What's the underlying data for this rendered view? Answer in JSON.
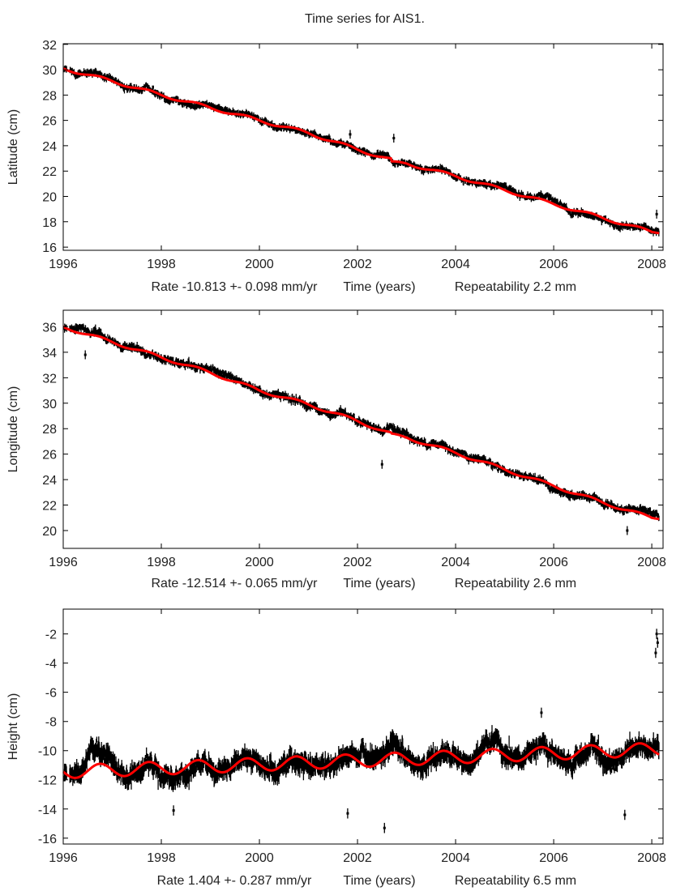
{
  "title": "Time series for AIS1.",
  "colors": {
    "observations": "#000000",
    "fit": "#ff0000",
    "axis": "#000000"
  },
  "chart_data": [
    {
      "type": "scatter",
      "ylabel": "Latitude (cm)",
      "xlabel_parts": [
        "Rate -10.813 +- 0.098 mm/yr",
        "Time (years)",
        "Repeatability 2.2 mm"
      ],
      "xlim": [
        1996,
        2008.23
      ],
      "ylim": [
        15.75,
        32.05
      ],
      "xticks": [
        1996,
        1998,
        2000,
        2002,
        2004,
        2006,
        2008
      ],
      "yticks": [
        16,
        18,
        20,
        22,
        24,
        26,
        28,
        30,
        32
      ],
      "fit_knots_year": [
        1996,
        1997,
        1998,
        1999,
        2000,
        2001,
        2002,
        2002.68,
        2002.7,
        2003,
        2004,
        2005,
        2006,
        2007,
        2008,
        2008.15
      ],
      "fit_knots_value": [
        30.1,
        29.1,
        28.0,
        27.0,
        26.0,
        25.0,
        23.7,
        22.9,
        22.65,
        22.6,
        21.6,
        20.5,
        19.4,
        18.3,
        17.2,
        17.2
      ],
      "seasonal_amplitude": 0.12,
      "noise_sd": 0.22,
      "outliers": [
        [
          2002.74,
          24.6
        ],
        [
          2001.85,
          24.9
        ],
        [
          2008.1,
          18.6
        ]
      ]
    },
    {
      "type": "scatter",
      "ylabel": "Longitude (cm)",
      "xlabel_parts": [
        "Rate -12.514 +- 0.065 mm/yr",
        "Time (years)",
        "Repeatability 2.6 mm"
      ],
      "xlim": [
        1996,
        2008.23
      ],
      "ylim": [
        18.6,
        37.3
      ],
      "xticks": [
        1996,
        1998,
        2000,
        2002,
        2004,
        2006,
        2008
      ],
      "yticks": [
        20,
        22,
        24,
        26,
        28,
        30,
        32,
        34,
        36
      ],
      "fit_knots_year": [
        1996,
        1997,
        1998,
        1999,
        2000,
        2001,
        2002,
        2002.68,
        2002.7,
        2003,
        2004,
        2005,
        2006,
        2007,
        2008,
        2008.15
      ],
      "fit_knots_value": [
        36.0,
        34.8,
        33.6,
        32.4,
        31.0,
        29.9,
        28.6,
        27.6,
        27.5,
        27.3,
        26.1,
        24.8,
        23.5,
        22.2,
        21.0,
        21.0
      ],
      "seasonal_amplitude": 0.12,
      "noise_sd": 0.25,
      "outliers": [
        [
          2002.5,
          25.2
        ],
        [
          1996.45,
          33.8
        ],
        [
          2007.5,
          20.0
        ],
        [
          2002.75,
          28.0
        ]
      ]
    },
    {
      "type": "scatter",
      "ylabel": "Height (cm)",
      "xlabel_parts": [
        "Rate 1.404 +- 0.287 mm/yr",
        "Time (years)",
        "Repeatability 6.5 mm"
      ],
      "xlim": [
        1996,
        2008.23
      ],
      "ylim": [
        -16.4,
        -0.3
      ],
      "xticks": [
        1996,
        1998,
        2000,
        2002,
        2004,
        2006,
        2008
      ],
      "yticks": [
        -16,
        -14,
        -12,
        -10,
        -8,
        -6,
        -4,
        -2
      ],
      "fit_knots_year": [
        1996,
        2008.15
      ],
      "fit_knots_value": [
        -11.45,
        -9.9
      ],
      "seasonal_amplitude": 0.45,
      "seasonal_peak_phase": 0.75,
      "noise_sd": 0.55,
      "outliers": [
        [
          2008.08,
          -3.3
        ],
        [
          2008.1,
          -2.0
        ],
        [
          2008.12,
          -2.6
        ],
        [
          2002.55,
          -15.3
        ],
        [
          1998.25,
          -14.1
        ],
        [
          2001.8,
          -14.3
        ],
        [
          2007.45,
          -14.4
        ],
        [
          2005.75,
          -7.4
        ]
      ]
    }
  ]
}
